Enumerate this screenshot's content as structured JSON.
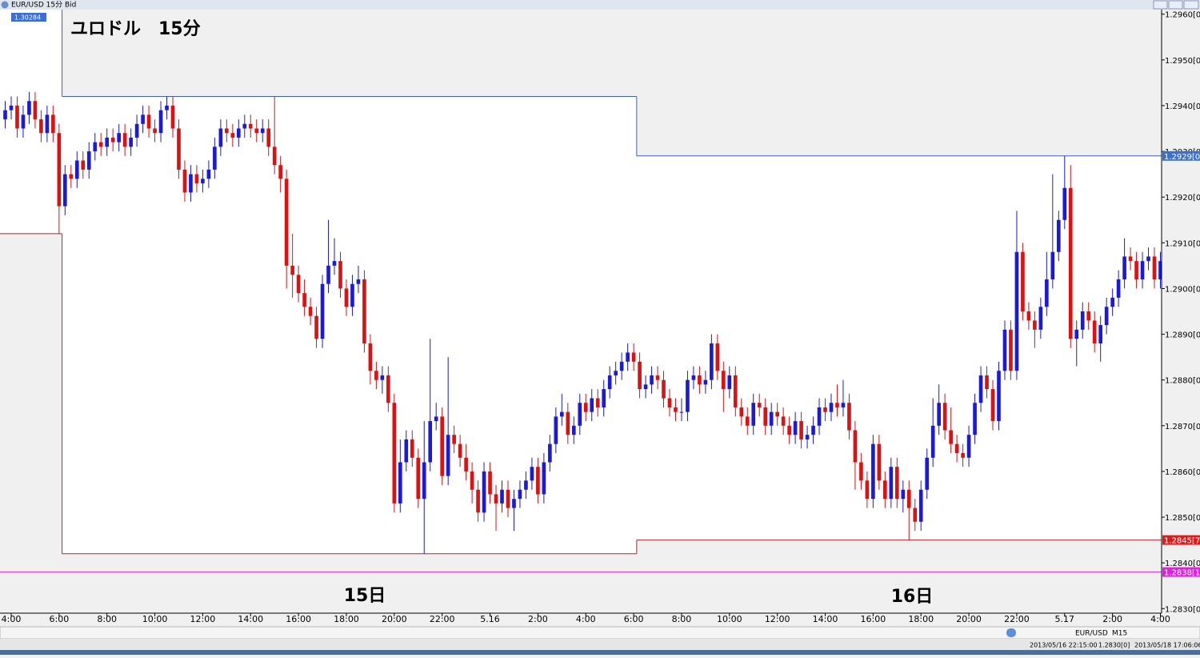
{
  "window_title": "EUR/USD 15分 Bid",
  "chart_data": {
    "type": "candlestick",
    "title": "ユロドル　15分",
    "annotations": [
      "15日",
      "16日"
    ],
    "badge": "1.30284",
    "up_color": "#1a1ad8",
    "down_color": "#dd1111",
    "xlim": [
      -0.87,
      193.2
    ],
    "xticks": [
      {
        "value": 1,
        "label": "4:00"
      },
      {
        "value": 9,
        "label": "6:00"
      },
      {
        "value": 17,
        "label": "8:00"
      },
      {
        "value": 25,
        "label": "10:00"
      },
      {
        "value": 33,
        "label": "12:00"
      },
      {
        "value": 41,
        "label": "14:00"
      },
      {
        "value": 49,
        "label": "16:00"
      },
      {
        "value": 57,
        "label": "18:00"
      },
      {
        "value": 65,
        "label": "20:00"
      },
      {
        "value": 73,
        "label": "22:00"
      },
      {
        "value": 81,
        "label": "5.16"
      },
      {
        "value": 89,
        "label": "2:00"
      },
      {
        "value": 97,
        "label": "4:00"
      },
      {
        "value": 105,
        "label": "6:00"
      },
      {
        "value": 113,
        "label": "8:00"
      },
      {
        "value": 121,
        "label": "10:00"
      },
      {
        "value": 129,
        "label": "12:00"
      },
      {
        "value": 137,
        "label": "14:00"
      },
      {
        "value": 145,
        "label": "16:00"
      },
      {
        "value": 153,
        "label": "18:00"
      },
      {
        "value": 161,
        "label": "20:00"
      },
      {
        "value": 169,
        "label": "22:00"
      },
      {
        "value": 177,
        "label": "5.17"
      },
      {
        "value": 185,
        "label": "2:00"
      },
      {
        "value": 193,
        "label": "4:00"
      }
    ],
    "ylim": [
      1.2829,
      1.2961
    ],
    "yticks": [
      {
        "value": 1.296,
        "label": "1.2960[0"
      },
      {
        "value": 1.295,
        "label": "1.2950[0"
      },
      {
        "value": 1.294,
        "label": "1.2940[0"
      },
      {
        "value": 1.293,
        "label": "1.2930[0"
      },
      {
        "value": 1.292,
        "label": "1.2920[0"
      },
      {
        "value": 1.291,
        "label": "1.2910[0"
      },
      {
        "value": 1.29,
        "label": "1.2900[0"
      },
      {
        "value": 1.289,
        "label": "1.2890[0"
      },
      {
        "value": 1.288,
        "label": "1.2880[0"
      },
      {
        "value": 1.287,
        "label": "1.2870[0"
      },
      {
        "value": 1.286,
        "label": "1.2860[0"
      },
      {
        "value": 1.285,
        "label": "1.2850[0"
      },
      {
        "value": 1.284,
        "label": "1.2840[0"
      },
      {
        "value": 1.283,
        "label": "1.2830[0"
      }
    ],
    "ranges": [
      {
        "x": [
          -0.87,
          9.5
        ],
        "low": 1.2912
      },
      {
        "x": [
          9.5,
          105.5
        ],
        "high": 1.2942,
        "low": 1.2842
      },
      {
        "x": [
          105.5,
          193.2
        ],
        "high": 1.2929,
        "low": 1.2845
      }
    ],
    "price_lines": [
      {
        "value": 1.2929,
        "label": "1.2929[0",
        "color": "#3a6fd8",
        "line": false
      },
      {
        "value": 1.2845,
        "label": "1.2845[7",
        "color": "#e01b1b",
        "line": false
      },
      {
        "value": 1.2838,
        "label": "1.2838[1",
        "color": "#e020e0",
        "line": true
      }
    ],
    "candles": [
      [
        1.2937,
        1.2941,
        1.2935,
        1.2939
      ],
      [
        1.2939,
        1.2942,
        1.2937,
        1.294
      ],
      [
        1.294,
        1.2942,
        1.2933,
        1.2935
      ],
      [
        1.2935,
        1.294,
        1.2933,
        1.2938
      ],
      [
        1.2938,
        1.2943,
        1.2936,
        1.2941
      ],
      [
        1.2941,
        1.2943,
        1.2935,
        1.2937
      ],
      [
        1.2937,
        1.2939,
        1.2932,
        1.2934
      ],
      [
        1.2934,
        1.294,
        1.2932,
        1.2938
      ],
      [
        1.2938,
        1.294,
        1.2932,
        1.2934
      ],
      [
        1.2934,
        1.2936,
        1.2912,
        1.2918
      ],
      [
        1.2918,
        1.2927,
        1.2916,
        1.2925
      ],
      [
        1.2925,
        1.2927,
        1.2922,
        1.2924
      ],
      [
        1.2924,
        1.293,
        1.2922,
        1.2928
      ],
      [
        1.2928,
        1.293,
        1.2924,
        1.2926
      ],
      [
        1.2926,
        1.2932,
        1.2924,
        1.293
      ],
      [
        1.293,
        1.2934,
        1.2928,
        1.2932
      ],
      [
        1.2932,
        1.2934,
        1.2929,
        1.2931
      ],
      [
        1.2931,
        1.2935,
        1.2929,
        1.2933
      ],
      [
        1.2933,
        1.2935,
        1.293,
        1.2932
      ],
      [
        1.2932,
        1.2936,
        1.293,
        1.2934
      ],
      [
        1.2934,
        1.2936,
        1.2929,
        1.2931
      ],
      [
        1.2931,
        1.2935,
        1.2929,
        1.2933
      ],
      [
        1.2933,
        1.2938,
        1.2931,
        1.2936
      ],
      [
        1.2936,
        1.294,
        1.2934,
        1.2938
      ],
      [
        1.2938,
        1.294,
        1.2933,
        1.2935
      ],
      [
        1.2935,
        1.2937,
        1.2932,
        1.2934
      ],
      [
        1.2934,
        1.2941,
        1.2932,
        1.2939
      ],
      [
        1.2939,
        1.2942,
        1.2937,
        1.294
      ],
      [
        1.294,
        1.2942,
        1.2933,
        1.2935
      ],
      [
        1.2935,
        1.2937,
        1.2924,
        1.2926
      ],
      [
        1.2926,
        1.2928,
        1.2919,
        1.2921
      ],
      [
        1.2921,
        1.2927,
        1.2919,
        1.2925
      ],
      [
        1.2925,
        1.2927,
        1.2921,
        1.2923
      ],
      [
        1.2923,
        1.2926,
        1.2921,
        1.2924
      ],
      [
        1.2924,
        1.2928,
        1.2922,
        1.2926
      ],
      [
        1.2926,
        1.2933,
        1.2924,
        1.2931
      ],
      [
        1.2931,
        1.2937,
        1.2929,
        1.2935
      ],
      [
        1.2935,
        1.2937,
        1.2932,
        1.2934
      ],
      [
        1.2934,
        1.2936,
        1.2931,
        1.2933
      ],
      [
        1.2933,
        1.2937,
        1.2931,
        1.2935
      ],
      [
        1.2935,
        1.2938,
        1.2933,
        1.2936
      ],
      [
        1.2936,
        1.2938,
        1.2933,
        1.2935
      ],
      [
        1.2935,
        1.2937,
        1.2932,
        1.2934
      ],
      [
        1.2934,
        1.2937,
        1.2932,
        1.2935
      ],
      [
        1.2935,
        1.2937,
        1.2929,
        1.2931
      ],
      [
        1.2931,
        1.2942,
        1.2925,
        1.2927
      ],
      [
        1.2927,
        1.2929,
        1.2921,
        1.2924
      ],
      [
        1.2924,
        1.2926,
        1.29,
        1.2905
      ],
      [
        1.2905,
        1.2912,
        1.2898,
        1.2903
      ],
      [
        1.2903,
        1.2905,
        1.2897,
        1.2899
      ],
      [
        1.2899,
        1.2902,
        1.2894,
        1.2896
      ],
      [
        1.2896,
        1.2898,
        1.2892,
        1.2894
      ],
      [
        1.2894,
        1.2896,
        1.2887,
        1.2889
      ],
      [
        1.2889,
        1.2903,
        1.2887,
        1.2901
      ],
      [
        1.2901,
        1.2915,
        1.2899,
        1.2905
      ],
      [
        1.2905,
        1.2911,
        1.2903,
        1.2906
      ],
      [
        1.2906,
        1.2908,
        1.2898,
        1.29
      ],
      [
        1.29,
        1.2902,
        1.2894,
        1.2896
      ],
      [
        1.2896,
        1.2903,
        1.2894,
        1.2901
      ],
      [
        1.2901,
        1.2905,
        1.2899,
        1.2902
      ],
      [
        1.2902,
        1.2904,
        1.2886,
        1.2888
      ],
      [
        1.2888,
        1.289,
        1.2879,
        1.2882
      ],
      [
        1.2882,
        1.2884,
        1.2878,
        1.288
      ],
      [
        1.288,
        1.2883,
        1.2877,
        1.2881
      ],
      [
        1.2881,
        1.2883,
        1.2873,
        1.2875
      ],
      [
        1.2875,
        1.2877,
        1.2851,
        1.2853
      ],
      [
        1.2853,
        1.2867,
        1.2851,
        1.2862
      ],
      [
        1.2862,
        1.2869,
        1.286,
        1.2867
      ],
      [
        1.2867,
        1.2869,
        1.2861,
        1.2863
      ],
      [
        1.2863,
        1.2865,
        1.2852,
        1.2854
      ],
      [
        1.2854,
        1.2871,
        1.2842,
        1.2862
      ],
      [
        1.2862,
        1.2889,
        1.286,
        1.2871
      ],
      [
        1.2871,
        1.2875,
        1.2869,
        1.2872
      ],
      [
        1.2872,
        1.2874,
        1.2857,
        1.2859
      ],
      [
        1.2859,
        1.2885,
        1.2857,
        1.2868
      ],
      [
        1.2868,
        1.287,
        1.2864,
        1.2866
      ],
      [
        1.2866,
        1.2868,
        1.2861,
        1.2863
      ],
      [
        1.2863,
        1.2866,
        1.2858,
        1.286
      ],
      [
        1.286,
        1.2862,
        1.2853,
        1.2856
      ],
      [
        1.2856,
        1.2858,
        1.2849,
        1.2851
      ],
      [
        1.2851,
        1.2862,
        1.2849,
        1.286
      ],
      [
        1.286,
        1.2862,
        1.2853,
        1.2855
      ],
      [
        1.2855,
        1.2857,
        1.2847,
        1.2853
      ],
      [
        1.2853,
        1.2858,
        1.2851,
        1.2856
      ],
      [
        1.2856,
        1.2858,
        1.285,
        1.2852
      ],
      [
        1.2852,
        1.2856,
        1.2847,
        1.2854
      ],
      [
        1.2854,
        1.2858,
        1.2852,
        1.2856
      ],
      [
        1.2856,
        1.286,
        1.2854,
        1.2858
      ],
      [
        1.2858,
        1.2863,
        1.2856,
        1.2861
      ],
      [
        1.2861,
        1.2863,
        1.2853,
        1.2855
      ],
      [
        1.2855,
        1.2864,
        1.2853,
        1.2862
      ],
      [
        1.2862,
        1.2868,
        1.286,
        1.2866
      ],
      [
        1.2866,
        1.2874,
        1.2864,
        1.2872
      ],
      [
        1.2872,
        1.2877,
        1.287,
        1.2873
      ],
      [
        1.2873,
        1.2875,
        1.2866,
        1.2868
      ],
      [
        1.2868,
        1.2872,
        1.2866,
        1.287
      ],
      [
        1.287,
        1.2877,
        1.2868,
        1.2875
      ],
      [
        1.2875,
        1.2877,
        1.2871,
        1.2873
      ],
      [
        1.2873,
        1.2878,
        1.2871,
        1.2876
      ],
      [
        1.2876,
        1.2878,
        1.2872,
        1.2874
      ],
      [
        1.2874,
        1.288,
        1.2872,
        1.2878
      ],
      [
        1.2878,
        1.2883,
        1.2876,
        1.2881
      ],
      [
        1.2881,
        1.2884,
        1.2879,
        1.2882
      ],
      [
        1.2882,
        1.2886,
        1.288,
        1.2884
      ],
      [
        1.2884,
        1.2888,
        1.2882,
        1.2886
      ],
      [
        1.2886,
        1.2888,
        1.2882,
        1.2884
      ],
      [
        1.2884,
        1.2886,
        1.2876,
        1.2878
      ],
      [
        1.2878,
        1.2881,
        1.2876,
        1.2879
      ],
      [
        1.2879,
        1.2883,
        1.2877,
        1.2881
      ],
      [
        1.2881,
        1.2883,
        1.2878,
        1.288
      ],
      [
        1.288,
        1.2882,
        1.2874,
        1.2876
      ],
      [
        1.2876,
        1.2878,
        1.2872,
        1.2874
      ],
      [
        1.2874,
        1.2876,
        1.2871,
        1.2873
      ],
      [
        1.2873,
        1.2876,
        1.2871,
        1.2873
      ],
      [
        1.2873,
        1.2882,
        1.2871,
        1.288
      ],
      [
        1.288,
        1.2883,
        1.2878,
        1.2881
      ],
      [
        1.2881,
        1.2883,
        1.2877,
        1.2879
      ],
      [
        1.2879,
        1.2882,
        1.2877,
        1.288
      ],
      [
        1.288,
        1.289,
        1.2878,
        1.2888
      ],
      [
        1.2888,
        1.289,
        1.288,
        1.2882
      ],
      [
        1.2882,
        1.2884,
        1.2873,
        1.2878
      ],
      [
        1.2878,
        1.2883,
        1.2876,
        1.2881
      ],
      [
        1.2881,
        1.2883,
        1.2872,
        1.2874
      ],
      [
        1.2874,
        1.2876,
        1.287,
        1.2872
      ],
      [
        1.2872,
        1.2874,
        1.2868,
        1.287
      ],
      [
        1.287,
        1.2877,
        1.2868,
        1.2875
      ],
      [
        1.2875,
        1.2877,
        1.2872,
        1.2874
      ],
      [
        1.2874,
        1.2876,
        1.2868,
        1.287
      ],
      [
        1.287,
        1.2875,
        1.2868,
        1.2873
      ],
      [
        1.2873,
        1.2875,
        1.287,
        1.2872
      ],
      [
        1.2872,
        1.2874,
        1.2868,
        1.287
      ],
      [
        1.287,
        1.2872,
        1.2866,
        1.2868
      ],
      [
        1.2868,
        1.2873,
        1.2866,
        1.2871
      ],
      [
        1.2871,
        1.2873,
        1.2865,
        1.2867
      ],
      [
        1.2867,
        1.287,
        1.2865,
        1.2868
      ],
      [
        1.2868,
        1.2872,
        1.2866,
        1.287
      ],
      [
        1.287,
        1.2876,
        1.2868,
        1.2874
      ],
      [
        1.2874,
        1.2876,
        1.2871,
        1.2873
      ],
      [
        1.2873,
        1.2877,
        1.2871,
        1.2875
      ],
      [
        1.2875,
        1.2879,
        1.2872,
        1.2874
      ],
      [
        1.2874,
        1.288,
        1.2872,
        1.2875
      ],
      [
        1.2875,
        1.2877,
        1.2867,
        1.2869
      ],
      [
        1.2869,
        1.2871,
        1.2856,
        1.2862
      ],
      [
        1.2862,
        1.2864,
        1.2856,
        1.2858
      ],
      [
        1.2858,
        1.286,
        1.2852,
        1.2854
      ],
      [
        1.2854,
        1.2868,
        1.2852,
        1.2866
      ],
      [
        1.2866,
        1.2868,
        1.2856,
        1.2858
      ],
      [
        1.2858,
        1.286,
        1.2852,
        1.2854
      ],
      [
        1.2854,
        1.2863,
        1.2852,
        1.2861
      ],
      [
        1.2861,
        1.2863,
        1.2852,
        1.2854
      ],
      [
        1.2854,
        1.2858,
        1.2851,
        1.2856
      ],
      [
        1.2856,
        1.2858,
        1.2845,
        1.2852
      ],
      [
        1.2852,
        1.2854,
        1.2847,
        1.2849
      ],
      [
        1.2849,
        1.2858,
        1.2847,
        1.2856
      ],
      [
        1.2856,
        1.2865,
        1.2854,
        1.2863
      ],
      [
        1.2863,
        1.2876,
        1.2861,
        1.287
      ],
      [
        1.287,
        1.2879,
        1.2868,
        1.2875
      ],
      [
        1.2875,
        1.2877,
        1.2867,
        1.2869
      ],
      [
        1.2869,
        1.2874,
        1.2864,
        1.2866
      ],
      [
        1.2866,
        1.2868,
        1.2862,
        1.2864
      ],
      [
        1.2864,
        1.2866,
        1.2861,
        1.2863
      ],
      [
        1.2863,
        1.287,
        1.2861,
        1.2868
      ],
      [
        1.2868,
        1.2877,
        1.2866,
        1.2875
      ],
      [
        1.2875,
        1.2883,
        1.2873,
        1.2881
      ],
      [
        1.2881,
        1.2883,
        1.2876,
        1.2878
      ],
      [
        1.2878,
        1.288,
        1.2869,
        1.2871
      ],
      [
        1.2871,
        1.2884,
        1.2869,
        1.2882
      ],
      [
        1.2882,
        1.2893,
        1.288,
        1.2891
      ],
      [
        1.2891,
        1.2893,
        1.288,
        1.2882
      ],
      [
        1.2882,
        1.2917,
        1.288,
        1.2908
      ],
      [
        1.2908,
        1.291,
        1.2893,
        1.2895
      ],
      [
        1.2895,
        1.2897,
        1.2891,
        1.2893
      ],
      [
        1.2893,
        1.2895,
        1.2887,
        1.2891
      ],
      [
        1.2891,
        1.2898,
        1.2889,
        1.2896
      ],
      [
        1.2896,
        1.2908,
        1.2894,
        1.2902
      ],
      [
        1.2902,
        1.2925,
        1.29,
        1.2908
      ],
      [
        1.2908,
        1.2917,
        1.2906,
        1.2915
      ],
      [
        1.2915,
        1.2929,
        1.2913,
        1.2922
      ],
      [
        1.2922,
        1.2927,
        1.2887,
        1.2889
      ],
      [
        1.2889,
        1.2893,
        1.2883,
        1.2891
      ],
      [
        1.2891,
        1.2897,
        1.2889,
        1.2895
      ],
      [
        1.2895,
        1.2897,
        1.2891,
        1.2893
      ],
      [
        1.2893,
        1.2895,
        1.2886,
        1.2888
      ],
      [
        1.2888,
        1.2894,
        1.2884,
        1.2892
      ],
      [
        1.2892,
        1.2898,
        1.289,
        1.2896
      ],
      [
        1.2896,
        1.29,
        1.2894,
        1.2898
      ],
      [
        1.2898,
        1.2904,
        1.2896,
        1.2902
      ],
      [
        1.2902,
        1.2911,
        1.29,
        1.2907
      ],
      [
        1.2907,
        1.2909,
        1.2904,
        1.2906
      ],
      [
        1.2906,
        1.2908,
        1.29,
        1.2902
      ],
      [
        1.2902,
        1.2908,
        1.29,
        1.2906
      ],
      [
        1.2906,
        1.2909,
        1.2904,
        1.2907
      ],
      [
        1.2907,
        1.2909,
        1.29,
        1.2902
      ],
      [
        1.2902,
        1.2908,
        1.29,
        1.2906
      ]
    ]
  },
  "status_bar": {
    "symbol": "EUR/USD",
    "timeframe": "M15",
    "cursor_time": "2013/05/16 22:15:00",
    "cursor_price": "1.2830[0]",
    "clock": "2013/05/18 17:06:06"
  }
}
